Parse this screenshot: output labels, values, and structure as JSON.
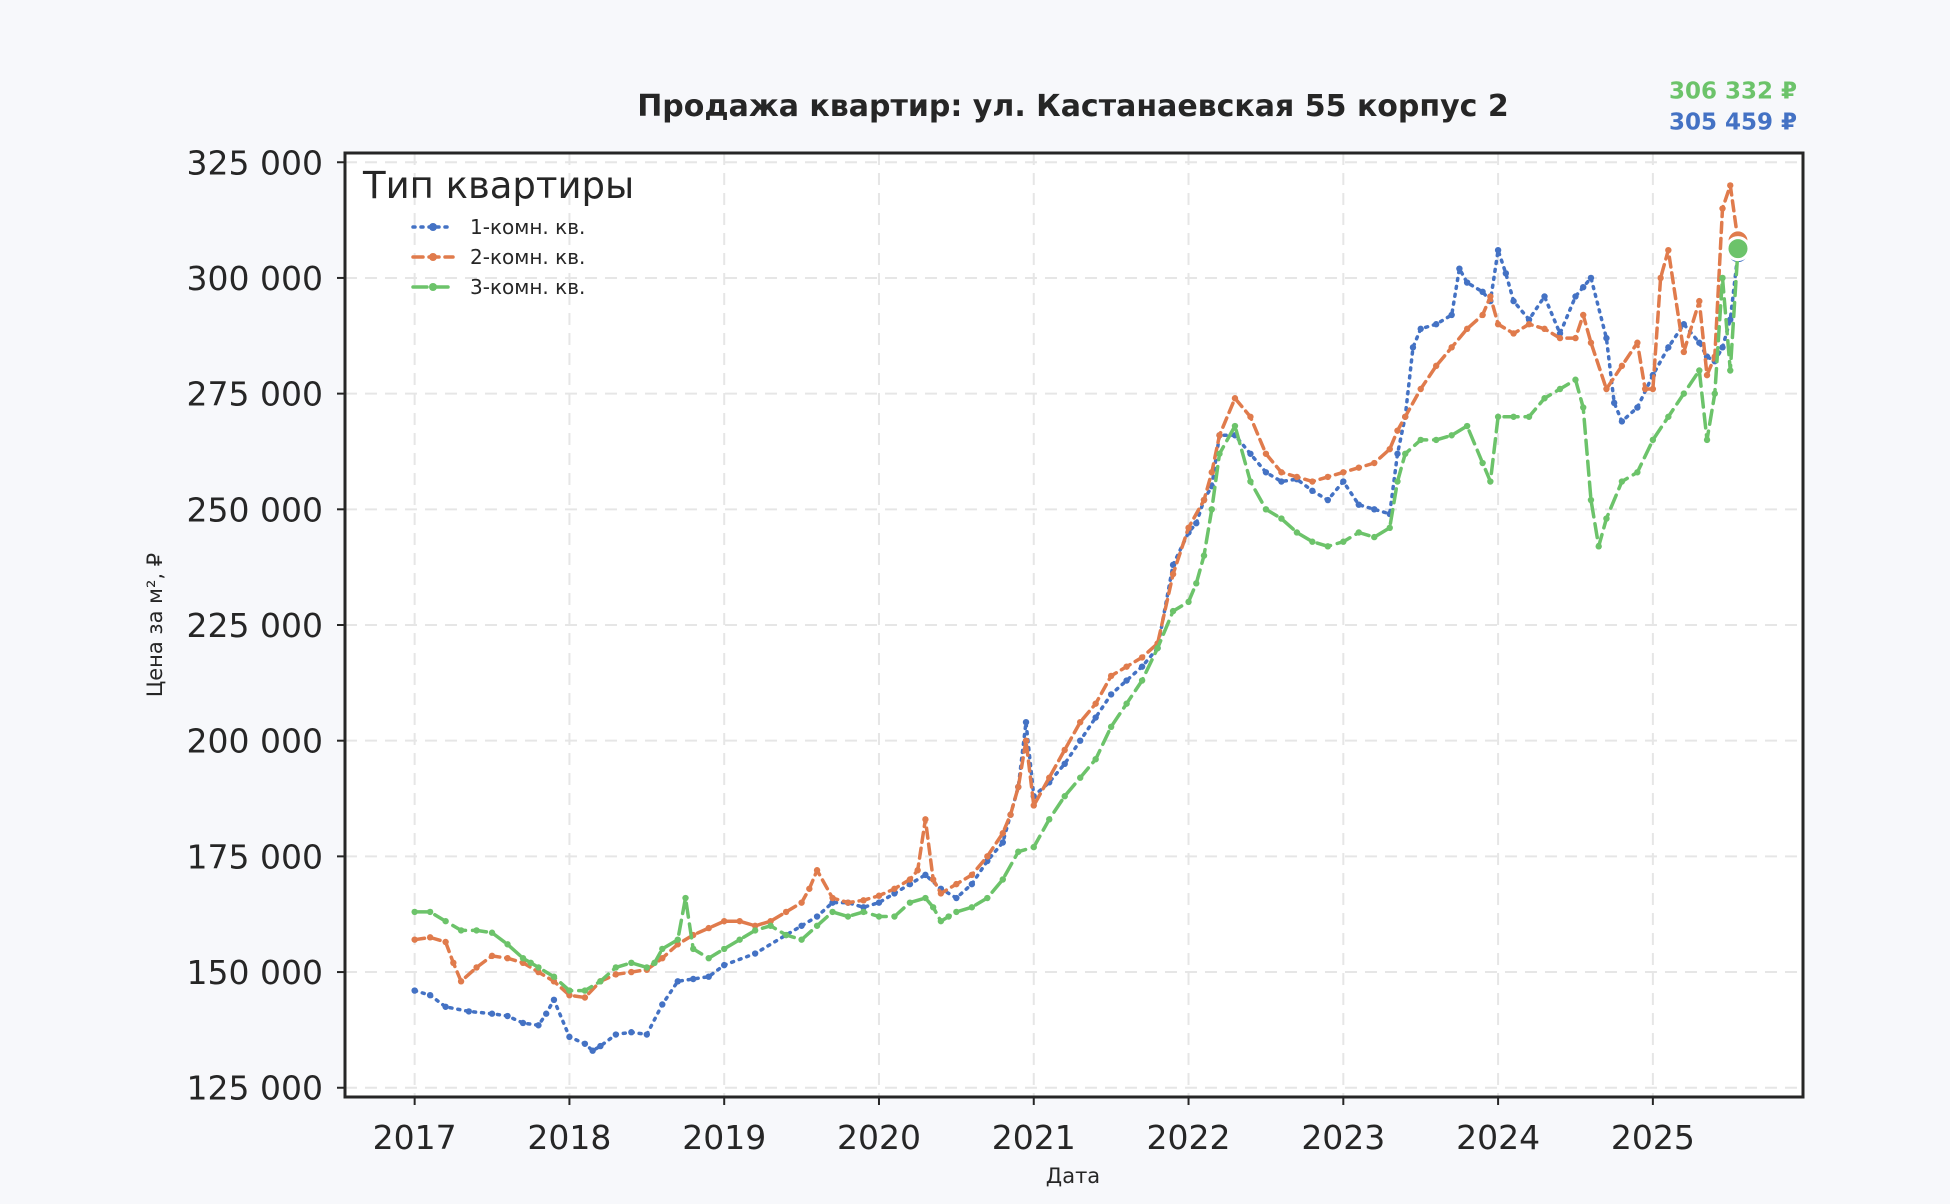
{
  "chart_data": {
    "type": "line",
    "title": "Продажа квартир: ул. Кастанаевская 55 корпус 2",
    "xlabel": "Дата",
    "ylabel": "Цена за м², ₽",
    "legend_title": "Тип квартиры",
    "legend_position": "top-left",
    "grid": true,
    "xlim": [
      2016.55,
      2025.97
    ],
    "ylim": [
      123000,
      327000
    ],
    "x_ticks": [
      2017,
      2018,
      2019,
      2020,
      2021,
      2022,
      2023,
      2024,
      2025
    ],
    "x_tick_labels": [
      "2017",
      "2018",
      "2019",
      "2020",
      "2021",
      "2022",
      "2023",
      "2024",
      "2025"
    ],
    "y_ticks": [
      125000,
      150000,
      175000,
      200000,
      225000,
      250000,
      275000,
      300000,
      325000
    ],
    "y_tick_labels": [
      "125 000",
      "150 000",
      "175 000",
      "200 000",
      "225 000",
      "250 000",
      "275 000",
      "300 000",
      "325 000"
    ],
    "series": [
      {
        "name": "1-комн. кв.",
        "color": "#4472c4",
        "dash": "dotted",
        "end_label": "305 459 ₽",
        "x": [
          2017.0,
          2017.1,
          2017.2,
          2017.35,
          2017.5,
          2017.6,
          2017.7,
          2017.8,
          2017.85,
          2017.9,
          2018.0,
          2018.1,
          2018.15,
          2018.2,
          2018.3,
          2018.4,
          2018.5,
          2018.6,
          2018.7,
          2018.8,
          2018.9,
          2019.0,
          2019.2,
          2019.4,
          2019.5,
          2019.6,
          2019.7,
          2019.8,
          2019.9,
          2020.0,
          2020.1,
          2020.2,
          2020.3,
          2020.4,
          2020.5,
          2020.6,
          2020.7,
          2020.8,
          2020.85,
          2020.9,
          2020.95,
          2021.0,
          2021.1,
          2021.2,
          2021.3,
          2021.4,
          2021.5,
          2021.6,
          2021.7,
          2021.8,
          2021.9,
          2022.0,
          2022.05,
          2022.1,
          2022.15,
          2022.2,
          2022.3,
          2022.4,
          2022.5,
          2022.6,
          2022.7,
          2022.8,
          2022.9,
          2023.0,
          2023.1,
          2023.2,
          2023.3,
          2023.35,
          2023.4,
          2023.45,
          2023.5,
          2023.6,
          2023.7,
          2023.75,
          2023.8,
          2023.9,
          2023.95,
          2024.0,
          2024.05,
          2024.1,
          2024.2,
          2024.3,
          2024.4,
          2024.5,
          2024.55,
          2024.6,
          2024.7,
          2024.75,
          2024.8,
          2024.9,
          2025.0,
          2025.1,
          2025.2,
          2025.3,
          2025.35,
          2025.4,
          2025.45,
          2025.5,
          2025.55
        ],
        "y": [
          146000,
          145000,
          142500,
          141500,
          141000,
          140500,
          139000,
          138500,
          141000,
          144000,
          136000,
          134500,
          133000,
          134000,
          136500,
          137000,
          136500,
          143000,
          148000,
          148500,
          149000,
          151500,
          154000,
          158000,
          160000,
          162000,
          165000,
          165000,
          164000,
          165000,
          167000,
          169000,
          171000,
          168000,
          166000,
          169000,
          174000,
          178000,
          184000,
          190000,
          204000,
          188000,
          191000,
          195000,
          200000,
          205000,
          210000,
          213000,
          216000,
          220000,
          238000,
          245000,
          247000,
          252000,
          255000,
          266000,
          266000,
          262000,
          258000,
          256000,
          256500,
          254000,
          252000,
          256000,
          251000,
          250000,
          249000,
          262000,
          270000,
          285000,
          289000,
          290000,
          292000,
          302000,
          299000,
          297000,
          295000,
          306000,
          301000,
          295000,
          291000,
          296000,
          288000,
          296000,
          298000,
          300000,
          287000,
          273000,
          269000,
          272000,
          279000,
          285000,
          290000,
          286000,
          283000,
          282000,
          285000,
          291000,
          305459
        ]
      },
      {
        "name": "2-комн. кв.",
        "color": "#e07b4c",
        "dash": "dashed",
        "end_label": "",
        "x": [
          2017.0,
          2017.1,
          2017.2,
          2017.25,
          2017.3,
          2017.4,
          2017.5,
          2017.6,
          2017.7,
          2017.8,
          2017.9,
          2018.0,
          2018.1,
          2018.2,
          2018.3,
          2018.4,
          2018.5,
          2018.6,
          2018.7,
          2018.8,
          2018.9,
          2019.0,
          2019.1,
          2019.2,
          2019.3,
          2019.4,
          2019.5,
          2019.55,
          2019.6,
          2019.7,
          2019.8,
          2019.9,
          2020.0,
          2020.1,
          2020.2,
          2020.25,
          2020.3,
          2020.35,
          2020.4,
          2020.5,
          2020.6,
          2020.7,
          2020.8,
          2020.85,
          2020.9,
          2020.95,
          2021.0,
          2021.1,
          2021.2,
          2021.3,
          2021.4,
          2021.5,
          2021.6,
          2021.7,
          2021.8,
          2021.9,
          2022.0,
          2022.1,
          2022.15,
          2022.2,
          2022.3,
          2022.4,
          2022.5,
          2022.6,
          2022.7,
          2022.8,
          2022.9,
          2023.0,
          2023.1,
          2023.2,
          2023.3,
          2023.35,
          2023.4,
          2023.5,
          2023.6,
          2023.7,
          2023.8,
          2023.9,
          2023.95,
          2024.0,
          2024.1,
          2024.2,
          2024.3,
          2024.4,
          2024.5,
          2024.55,
          2024.6,
          2024.7,
          2024.8,
          2024.9,
          2024.95,
          2025.0,
          2025.05,
          2025.1,
          2025.2,
          2025.3,
          2025.35,
          2025.4,
          2025.45,
          2025.5,
          2025.55
        ],
        "y": [
          157000,
          157500,
          156500,
          152000,
          148000,
          151000,
          153500,
          153000,
          152000,
          150000,
          148000,
          145000,
          144500,
          148000,
          149500,
          150000,
          150500,
          153000,
          156000,
          158000,
          159500,
          161000,
          161000,
          160000,
          161000,
          163000,
          165000,
          168000,
          172000,
          166000,
          165000,
          165500,
          166500,
          168000,
          170000,
          172000,
          183000,
          170000,
          167000,
          169000,
          171000,
          175000,
          180000,
          184000,
          190000,
          200000,
          186000,
          192000,
          198000,
          204000,
          208000,
          214000,
          216000,
          218000,
          221000,
          236000,
          246000,
          252000,
          258000,
          266000,
          274000,
          270000,
          262000,
          258000,
          257000,
          256000,
          257000,
          258000,
          259000,
          260000,
          263000,
          267000,
          270000,
          276000,
          281000,
          285000,
          289000,
          292000,
          296000,
          290000,
          288000,
          290000,
          289000,
          287000,
          287000,
          292000,
          286000,
          276000,
          281000,
          286000,
          276000,
          276000,
          300000,
          306000,
          284000,
          295000,
          279000,
          283000,
          315000,
          320000,
          308000
        ]
      },
      {
        "name": "3-комн. кв.",
        "color": "#6cc36a",
        "dash": "longdash",
        "end_label": "306 332 ₽",
        "x": [
          2017.0,
          2017.1,
          2017.2,
          2017.3,
          2017.4,
          2017.5,
          2017.6,
          2017.7,
          2017.75,
          2017.8,
          2017.9,
          2018.0,
          2018.1,
          2018.2,
          2018.3,
          2018.4,
          2018.5,
          2018.55,
          2018.6,
          2018.7,
          2018.75,
          2018.8,
          2018.9,
          2019.0,
          2019.1,
          2019.2,
          2019.3,
          2019.4,
          2019.5,
          2019.6,
          2019.7,
          2019.8,
          2019.9,
          2020.0,
          2020.1,
          2020.2,
          2020.3,
          2020.35,
          2020.4,
          2020.45,
          2020.5,
          2020.6,
          2020.7,
          2020.8,
          2020.9,
          2021.0,
          2021.1,
          2021.2,
          2021.3,
          2021.4,
          2021.5,
          2021.6,
          2021.7,
          2021.8,
          2021.9,
          2022.0,
          2022.05,
          2022.1,
          2022.15,
          2022.2,
          2022.3,
          2022.4,
          2022.5,
          2022.6,
          2022.7,
          2022.8,
          2022.9,
          2023.0,
          2023.1,
          2023.2,
          2023.3,
          2023.35,
          2023.4,
          2023.5,
          2023.6,
          2023.7,
          2023.8,
          2023.9,
          2023.95,
          2024.0,
          2024.1,
          2024.2,
          2024.3,
          2024.4,
          2024.5,
          2024.55,
          2024.6,
          2024.65,
          2024.7,
          2024.8,
          2024.9,
          2025.0,
          2025.1,
          2025.2,
          2025.3,
          2025.35,
          2025.4,
          2025.45,
          2025.5,
          2025.55
        ],
        "y": [
          163000,
          163000,
          161000,
          159000,
          159000,
          158500,
          156000,
          153000,
          152000,
          151000,
          149000,
          146000,
          146000,
          148000,
          151000,
          152000,
          151000,
          152000,
          155000,
          157000,
          166000,
          155000,
          153000,
          155000,
          157000,
          159000,
          160000,
          158000,
          157000,
          160000,
          163000,
          162000,
          163000,
          162000,
          162000,
          165000,
          166000,
          164000,
          161000,
          162000,
          163000,
          164000,
          166000,
          170000,
          176000,
          177000,
          183000,
          188000,
          192000,
          196000,
          203000,
          208000,
          213000,
          220000,
          228000,
          230000,
          234000,
          240000,
          250000,
          262000,
          268000,
          256000,
          250000,
          248000,
          245000,
          243000,
          242000,
          243000,
          245000,
          244000,
          246000,
          256000,
          262000,
          265000,
          265000,
          266000,
          268000,
          260000,
          256000,
          270000,
          270000,
          270000,
          274000,
          276000,
          278000,
          272000,
          252000,
          242000,
          248000,
          256000,
          258000,
          265000,
          270000,
          275000,
          280000,
          265000,
          275000,
          300000,
          280000,
          306332
        ]
      }
    ]
  }
}
